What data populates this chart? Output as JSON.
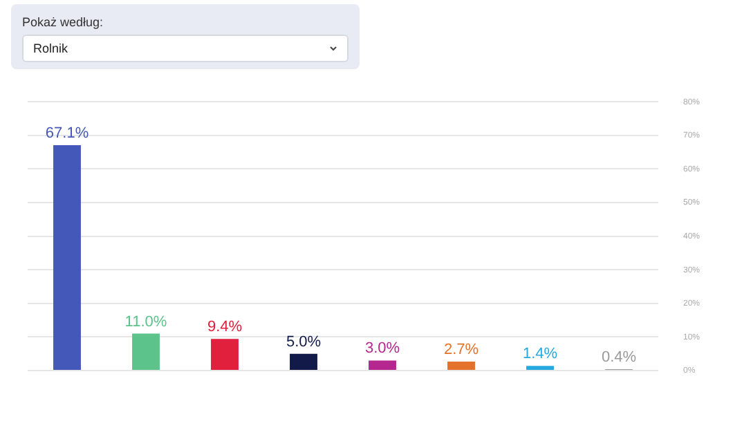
{
  "chart_data": {
    "type": "bar",
    "categories": [
      null,
      null,
      null,
      null,
      null,
      null,
      null,
      null
    ],
    "values": [
      67.1,
      11.0,
      9.4,
      5.0,
      3.0,
      2.7,
      1.4,
      0.4
    ],
    "colors": [
      "#4358b8",
      "#5cc38a",
      "#e0203d",
      "#121a4a",
      "#b5278f",
      "#e5722a",
      "#25a9e0",
      "#9a9a9a"
    ],
    "value_labels": [
      "67.1%",
      "11.0%",
      "9.4%",
      "5.0%",
      "3.0%",
      "2.7%",
      "1.4%",
      "0.4%"
    ],
    "ylim": [
      0,
      80
    ],
    "yticks": [
      {
        "value": 0,
        "label": "0%"
      },
      {
        "value": 10,
        "label": "10%"
      },
      {
        "value": 20,
        "label": "20%"
      },
      {
        "value": 30,
        "label": "30%"
      },
      {
        "value": 40,
        "label": "40%"
      },
      {
        "value": 50,
        "label": "50%"
      },
      {
        "value": 60,
        "label": "60%"
      },
      {
        "value": 70,
        "label": "70%"
      },
      {
        "value": 80,
        "label": "80%"
      }
    ],
    "grid": "y",
    "legend": false,
    "annotations": [
      "Pokaż według:",
      "Rolnik"
    ]
  }
}
